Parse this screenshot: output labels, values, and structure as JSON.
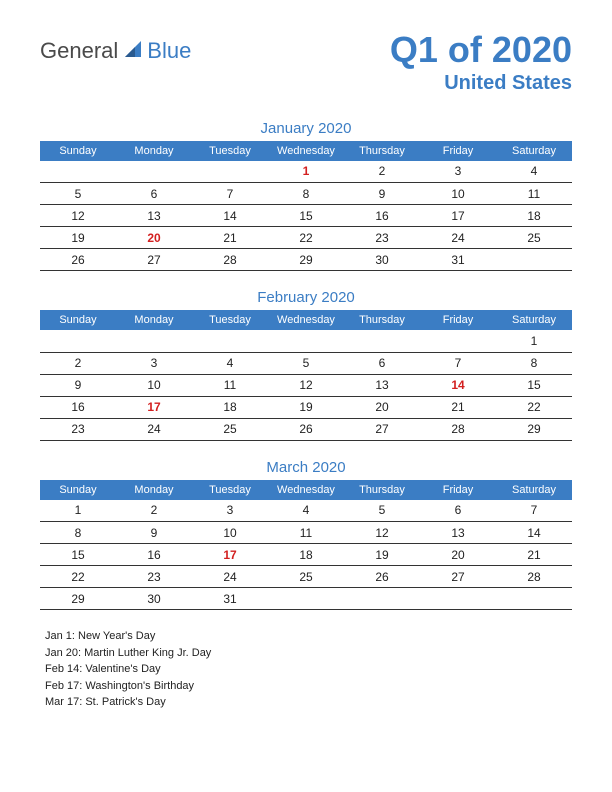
{
  "logo": {
    "word1": "General",
    "word2": "Blue",
    "icon_color": "#3b7dc4"
  },
  "header": {
    "title": "Q1 of 2020",
    "subtitle": "United States",
    "title_color": "#3b7dc4"
  },
  "colors": {
    "header_bg": "#3b7dc4",
    "header_text": "#ffffff",
    "holiday_text": "#d32020",
    "body_text": "#222222",
    "border": "#333333"
  },
  "day_headers": [
    "Sunday",
    "Monday",
    "Tuesday",
    "Wednesday",
    "Thursday",
    "Friday",
    "Saturday"
  ],
  "months": [
    {
      "title": "January 2020",
      "weeks": [
        [
          null,
          null,
          null,
          {
            "d": 1,
            "h": true
          },
          {
            "d": 2
          },
          {
            "d": 3
          },
          {
            "d": 4
          }
        ],
        [
          {
            "d": 5
          },
          {
            "d": 6
          },
          {
            "d": 7
          },
          {
            "d": 8
          },
          {
            "d": 9
          },
          {
            "d": 10
          },
          {
            "d": 11
          }
        ],
        [
          {
            "d": 12
          },
          {
            "d": 13
          },
          {
            "d": 14
          },
          {
            "d": 15
          },
          {
            "d": 16
          },
          {
            "d": 17
          },
          {
            "d": 18
          }
        ],
        [
          {
            "d": 19
          },
          {
            "d": 20,
            "h": true
          },
          {
            "d": 21
          },
          {
            "d": 22
          },
          {
            "d": 23
          },
          {
            "d": 24
          },
          {
            "d": 25
          }
        ],
        [
          {
            "d": 26
          },
          {
            "d": 27
          },
          {
            "d": 28
          },
          {
            "d": 29
          },
          {
            "d": 30
          },
          {
            "d": 31
          },
          null
        ]
      ]
    },
    {
      "title": "February 2020",
      "weeks": [
        [
          null,
          null,
          null,
          null,
          null,
          null,
          {
            "d": 1
          }
        ],
        [
          {
            "d": 2
          },
          {
            "d": 3
          },
          {
            "d": 4
          },
          {
            "d": 5
          },
          {
            "d": 6
          },
          {
            "d": 7
          },
          {
            "d": 8
          }
        ],
        [
          {
            "d": 9
          },
          {
            "d": 10
          },
          {
            "d": 11
          },
          {
            "d": 12
          },
          {
            "d": 13
          },
          {
            "d": 14,
            "h": true
          },
          {
            "d": 15
          }
        ],
        [
          {
            "d": 16
          },
          {
            "d": 17,
            "h": true
          },
          {
            "d": 18
          },
          {
            "d": 19
          },
          {
            "d": 20
          },
          {
            "d": 21
          },
          {
            "d": 22
          }
        ],
        [
          {
            "d": 23
          },
          {
            "d": 24
          },
          {
            "d": 25
          },
          {
            "d": 26
          },
          {
            "d": 27
          },
          {
            "d": 28
          },
          {
            "d": 29
          }
        ]
      ]
    },
    {
      "title": "March 2020",
      "weeks": [
        [
          {
            "d": 1
          },
          {
            "d": 2
          },
          {
            "d": 3
          },
          {
            "d": 4
          },
          {
            "d": 5
          },
          {
            "d": 6
          },
          {
            "d": 7
          }
        ],
        [
          {
            "d": 8
          },
          {
            "d": 9
          },
          {
            "d": 10
          },
          {
            "d": 11
          },
          {
            "d": 12
          },
          {
            "d": 13
          },
          {
            "d": 14
          }
        ],
        [
          {
            "d": 15
          },
          {
            "d": 16
          },
          {
            "d": 17,
            "h": true
          },
          {
            "d": 18
          },
          {
            "d": 19
          },
          {
            "d": 20
          },
          {
            "d": 21
          }
        ],
        [
          {
            "d": 22
          },
          {
            "d": 23
          },
          {
            "d": 24
          },
          {
            "d": 25
          },
          {
            "d": 26
          },
          {
            "d": 27
          },
          {
            "d": 28
          }
        ],
        [
          {
            "d": 29
          },
          {
            "d": 30
          },
          {
            "d": 31
          },
          null,
          null,
          null,
          null
        ]
      ]
    }
  ],
  "holiday_list": [
    "Jan 1: New Year's Day",
    "Jan 20: Martin Luther King Jr. Day",
    "Feb 14: Valentine's Day",
    "Feb 17: Washington's Birthday",
    "Mar 17: St. Patrick's Day"
  ]
}
